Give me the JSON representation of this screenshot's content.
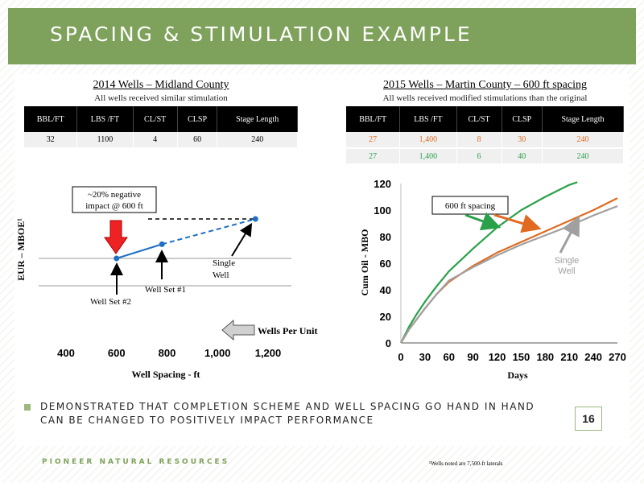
{
  "header": {
    "title": "SPACING & STIMULATION EXAMPLE"
  },
  "table_2014": {
    "title": "2014 Wells – Midland County",
    "subtitle": "All wells received similar stimulation",
    "columns": [
      "BBL/FT",
      "LBS /FT",
      "CL/ST",
      "CLSP",
      "Stage Length"
    ],
    "rows": [
      [
        "32",
        "1100",
        "4",
        "60",
        "240"
      ]
    ]
  },
  "table_2015": {
    "title": "2015 Wells – Martin County – 600 ft spacing",
    "subtitle": "All wells received modified stimulations than the original",
    "columns": [
      "BBL/FT",
      "LBS /FT",
      "CL/ST",
      "CLSP",
      "Stage Length"
    ],
    "rows": [
      [
        "27",
        "1,400",
        "8",
        "30",
        "240"
      ],
      [
        "27",
        "1,400",
        "6",
        "40",
        "240"
      ]
    ]
  },
  "colors": {
    "header": "#7ea15b",
    "green": "#2aa04a",
    "orange": "#e06a20",
    "gray": "#a0a0a0",
    "blue": "#1f6fc4",
    "red": "#ee2222"
  },
  "chart_data": [
    {
      "type": "line",
      "xlabel": "Well Spacing - ft",
      "ylabel": "EUR – MBOE¹",
      "xlim": [
        400,
        1200
      ],
      "x_ticks": [
        "400",
        "600",
        "800",
        "1,000",
        "1,200"
      ],
      "points": [
        {
          "x": 600,
          "y": 0.0,
          "label": "Well Set #2"
        },
        {
          "x": 780,
          "y": 0.18,
          "label": "Well Set #1"
        },
        {
          "x": 1150,
          "y": 0.5,
          "label": "Single Well"
        }
      ],
      "annotations": {
        "impact": [
          "~20% negative",
          "impact @ 600 ft"
        ],
        "single_well": [
          "Single",
          "Well"
        ],
        "well_set_1": "Well Set #1",
        "well_set_2": "Well Set #2",
        "wells_per_unit": "Wells Per Unit"
      }
    },
    {
      "type": "line",
      "xlabel": "Days",
      "ylabel": "Cum Oil - MBO",
      "xlim": [
        0,
        270
      ],
      "ylim": [
        0,
        120
      ],
      "x_ticks": [
        "0",
        "30",
        "60",
        "90",
        "120",
        "150",
        "180",
        "210",
        "240",
        "270"
      ],
      "y_ticks": [
        "0",
        "20",
        "40",
        "60",
        "80",
        "100",
        "120"
      ],
      "series": [
        {
          "color": "#2aa04a",
          "x": [
            0,
            10,
            20,
            30,
            45,
            60,
            90,
            120,
            150,
            180,
            210,
            220
          ],
          "y": [
            0,
            12,
            22,
            31,
            43,
            54,
            71,
            87,
            100,
            110,
            119,
            121
          ]
        },
        {
          "color": "#e06a20",
          "x": [
            0,
            10,
            20,
            30,
            45,
            60,
            90,
            120,
            150,
            180,
            210,
            240,
            270
          ],
          "y": [
            0,
            10,
            18,
            26,
            37,
            46,
            58,
            68,
            76,
            84,
            92,
            100,
            109
          ]
        },
        {
          "color": "#a0a0a0",
          "x": [
            0,
            10,
            20,
            30,
            45,
            60,
            90,
            120,
            150,
            180,
            210,
            240,
            270
          ],
          "y": [
            0,
            10,
            18,
            26,
            37,
            47,
            57,
            66,
            74,
            81,
            88,
            96,
            103
          ]
        }
      ],
      "annotations": {
        "spacing_label": "600 ft spacing",
        "single_well": [
          "Single",
          "Well"
        ]
      }
    }
  ],
  "bullet": "DEMONSTRATED THAT COMPLETION SCHEME AND WELL SPACING GO HAND IN HAND CAN BE CHANGED TO POSITIVELY IMPACT PERFORMANCE",
  "page_number": "16",
  "footer": {
    "brand": "PIONEER NATURAL RESOURCES",
    "footnote": "¹Wells noted are 7,500-ft laterals"
  }
}
